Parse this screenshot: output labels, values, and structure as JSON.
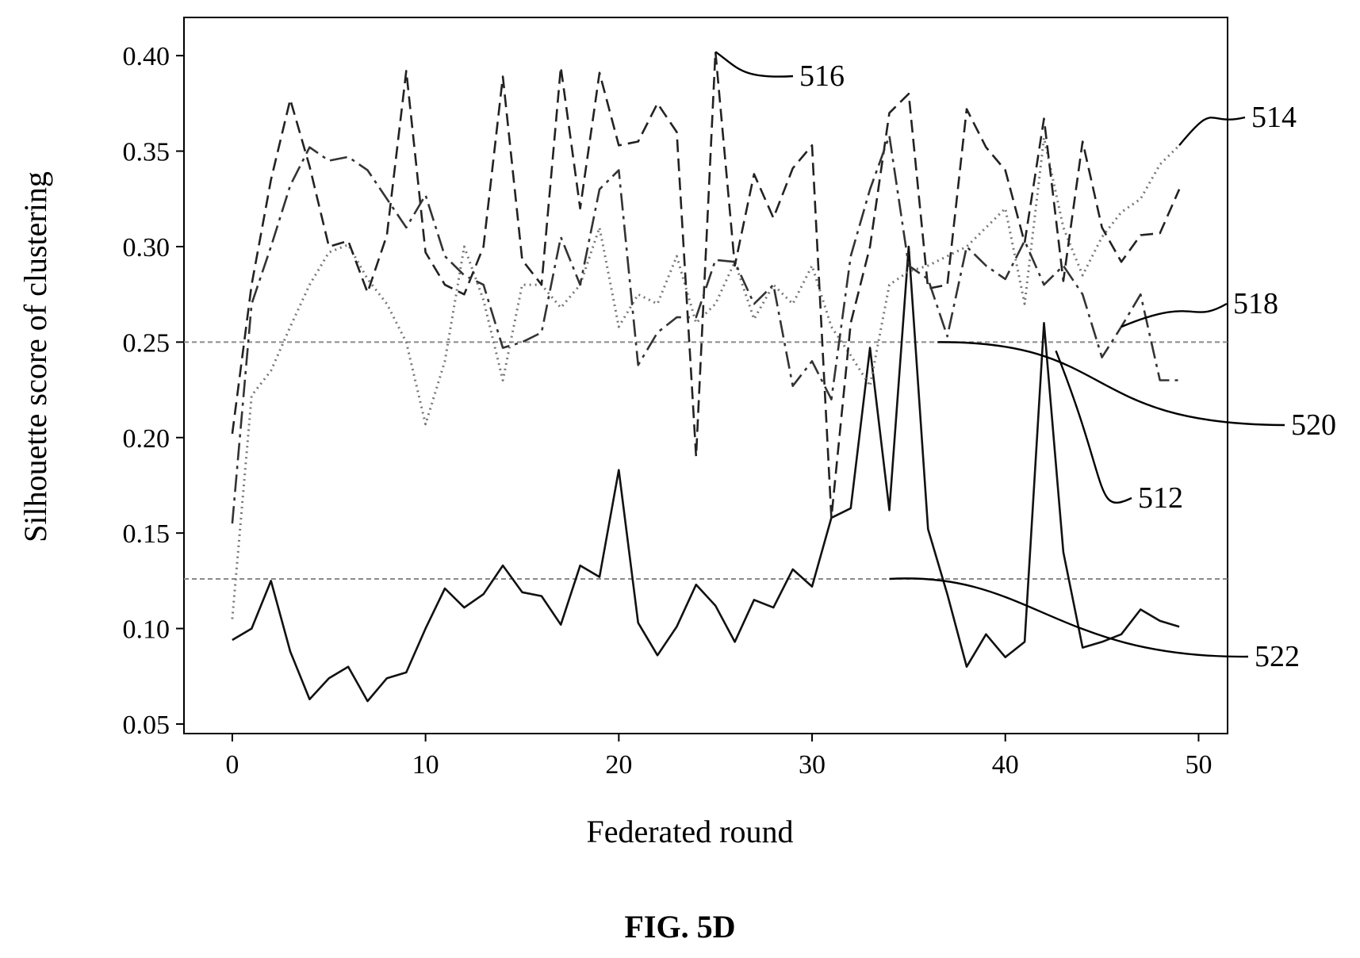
{
  "chart_data": {
    "type": "line",
    "title": "",
    "xlabel": "Federated round",
    "ylabel": "Silhouette score of clustering",
    "xlim": [
      -2.5,
      51.5
    ],
    "ylim": [
      0.045,
      0.42
    ],
    "xticks": [
      0,
      10,
      20,
      30,
      40,
      50
    ],
    "yticks": [
      0.05,
      0.1,
      0.15,
      0.2,
      0.25,
      0.3,
      0.35,
      0.4
    ],
    "ytick_labels": [
      "0.05",
      "0.10",
      "0.15",
      "0.20",
      "0.25",
      "0.30",
      "0.35",
      "0.40"
    ],
    "grid": false,
    "legend": "none",
    "thresholds": [
      {
        "ref": "520",
        "y": 0.25
      },
      {
        "ref": "522",
        "y": 0.126
      }
    ],
    "series": [
      {
        "ref": "512",
        "style": "solid",
        "x": [
          0,
          1,
          2,
          3,
          4,
          5,
          6,
          7,
          8,
          9,
          10,
          11,
          12,
          13,
          14,
          15,
          16,
          17,
          18,
          19,
          20,
          21,
          22,
          23,
          24,
          25,
          26,
          27,
          28,
          29,
          30,
          31,
          32,
          33,
          34,
          35,
          36,
          37,
          38,
          39,
          40,
          41,
          42,
          43,
          44,
          45,
          46,
          47,
          48,
          49
        ],
        "values": [
          0.094,
          0.1,
          0.125,
          0.088,
          0.063,
          0.074,
          0.08,
          0.062,
          0.074,
          0.077,
          0.1,
          0.121,
          0.111,
          0.118,
          0.133,
          0.119,
          0.117,
          0.102,
          0.133,
          0.127,
          0.183,
          0.103,
          0.086,
          0.101,
          0.123,
          0.112,
          0.093,
          0.115,
          0.111,
          0.131,
          0.122,
          0.158,
          0.163,
          0.247,
          0.162,
          0.3,
          0.152,
          0.118,
          0.08,
          0.097,
          0.085,
          0.093,
          0.26,
          0.14,
          0.09,
          0.093,
          0.097,
          0.11,
          0.104,
          0.101
        ]
      },
      {
        "ref": "514",
        "style": "dotted",
        "x": [
          0,
          1,
          2,
          3,
          4,
          5,
          6,
          7,
          8,
          9,
          10,
          11,
          12,
          13,
          14,
          15,
          16,
          17,
          18,
          19,
          20,
          21,
          22,
          23,
          24,
          25,
          26,
          27,
          28,
          29,
          30,
          31,
          32,
          33,
          34,
          35,
          36,
          37,
          38,
          39,
          40,
          41,
          42,
          43,
          44,
          45,
          46,
          47,
          48,
          49
        ],
        "values": [
          0.105,
          0.222,
          0.235,
          0.258,
          0.28,
          0.297,
          0.301,
          0.283,
          0.27,
          0.25,
          0.207,
          0.24,
          0.3,
          0.272,
          0.23,
          0.28,
          0.28,
          0.268,
          0.28,
          0.31,
          0.258,
          0.275,
          0.27,
          0.295,
          0.26,
          0.27,
          0.292,
          0.262,
          0.28,
          0.27,
          0.29,
          0.258,
          0.243,
          0.227,
          0.28,
          0.287,
          0.29,
          0.295,
          0.3,
          0.31,
          0.32,
          0.27,
          0.357,
          0.31,
          0.285,
          0.305,
          0.318,
          0.325,
          0.343,
          0.353
        ]
      },
      {
        "ref": "516",
        "style": "dashed",
        "x": [
          0,
          1,
          2,
          3,
          4,
          5,
          6,
          7,
          8,
          9,
          10,
          11,
          12,
          13,
          14,
          15,
          16,
          17,
          18,
          19,
          20,
          21,
          22,
          23,
          24,
          25,
          26,
          27,
          28,
          29,
          30,
          31,
          32,
          33,
          34,
          35,
          36,
          37,
          38,
          39,
          40,
          41,
          42,
          43,
          44,
          45,
          46,
          47,
          48,
          49
        ],
        "values": [
          0.202,
          0.28,
          0.335,
          0.377,
          0.342,
          0.3,
          0.303,
          0.276,
          0.306,
          0.392,
          0.297,
          0.28,
          0.275,
          0.3,
          0.389,
          0.293,
          0.28,
          0.394,
          0.32,
          0.391,
          0.353,
          0.355,
          0.375,
          0.36,
          0.19,
          0.402,
          0.29,
          0.338,
          0.315,
          0.341,
          0.353,
          0.158,
          0.26,
          0.3,
          0.37,
          0.38,
          0.278,
          0.28,
          0.372,
          0.352,
          0.34,
          0.302,
          0.367,
          0.282,
          0.355,
          0.31,
          0.292,
          0.306,
          0.307,
          0.33
        ]
      },
      {
        "ref": "518",
        "style": "dash-dot",
        "x": [
          0,
          1,
          2,
          3,
          4,
          5,
          6,
          7,
          8,
          9,
          10,
          11,
          12,
          13,
          14,
          15,
          16,
          17,
          18,
          19,
          20,
          21,
          22,
          23,
          24,
          25,
          26,
          27,
          28,
          29,
          30,
          31,
          32,
          33,
          34,
          35,
          36,
          37,
          38,
          39,
          40,
          41,
          42,
          43,
          44,
          45,
          46,
          47,
          48,
          49
        ],
        "values": [
          0.155,
          0.27,
          0.3,
          0.332,
          0.352,
          0.345,
          0.347,
          0.34,
          0.325,
          0.31,
          0.327,
          0.295,
          0.285,
          0.28,
          0.247,
          0.25,
          0.255,
          0.305,
          0.28,
          0.33,
          0.34,
          0.238,
          0.255,
          0.263,
          0.263,
          0.293,
          0.292,
          0.27,
          0.28,
          0.227,
          0.24,
          0.22,
          0.295,
          0.33,
          0.358,
          0.29,
          0.283,
          0.253,
          0.3,
          0.29,
          0.283,
          0.303,
          0.28,
          0.29,
          0.275,
          0.242,
          0.258,
          0.275,
          0.23,
          0.23
        ]
      }
    ],
    "reference_labels": [
      {
        "text": "516",
        "points_to": "516"
      },
      {
        "text": "514",
        "points_to": "514"
      },
      {
        "text": "518",
        "points_to": "518"
      },
      {
        "text": "520",
        "points_to": "520"
      },
      {
        "text": "512",
        "points_to": "512"
      },
      {
        "text": "522",
        "points_to": "522"
      }
    ]
  },
  "caption": "FIG. 5D"
}
